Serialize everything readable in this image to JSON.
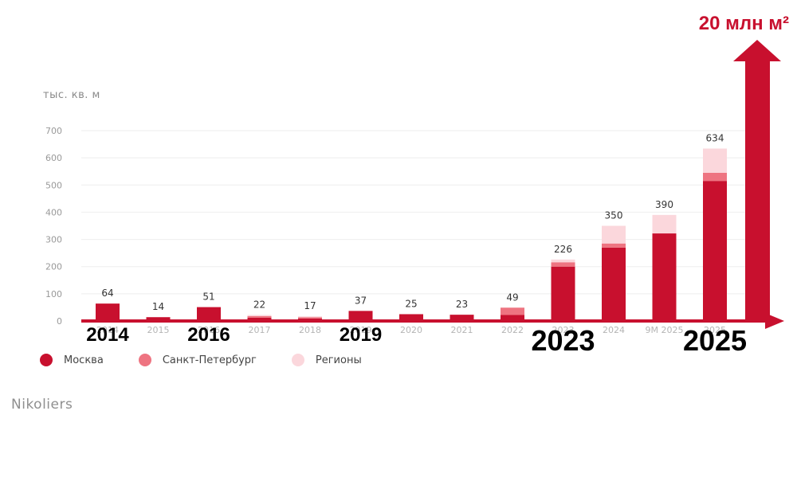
{
  "chart_data": {
    "type": "bar",
    "stacked": true,
    "unit_label": "тыс. кв. м",
    "target_label": "20 млн м²",
    "y_ticks": [
      0,
      100,
      200,
      300,
      400,
      500,
      600,
      700
    ],
    "ylim": [
      0,
      700
    ],
    "categories": [
      "2014",
      "2015",
      "2016",
      "2017",
      "2018",
      "2019",
      "2020",
      "2021",
      "2022",
      "2023",
      "2024",
      "9М 2025",
      "2025"
    ],
    "totals": [
      64,
      14,
      51,
      22,
      17,
      37,
      25,
      23,
      49,
      226,
      350,
      390,
      634
    ],
    "series": [
      {
        "name": "Москва",
        "color": "#c8102e",
        "values": [
          64,
          14,
          51,
          12,
          9,
          37,
          25,
          23,
          22,
          200,
          270,
          322,
          515
        ]
      },
      {
        "name": "Санкт-Петербург",
        "color": "#ee7481",
        "values": [
          0,
          0,
          0,
          6,
          5,
          0,
          0,
          0,
          27,
          16,
          15,
          0,
          30
        ]
      },
      {
        "name": "Регионы",
        "color": "#fbd7dc",
        "values": [
          0,
          0,
          0,
          4,
          3,
          0,
          0,
          0,
          0,
          10,
          65,
          68,
          89
        ]
      }
    ],
    "year_highlights": [
      {
        "label": "2014",
        "category": "2014",
        "size": "medium"
      },
      {
        "label": "2016",
        "category": "2016",
        "size": "medium"
      },
      {
        "label": "2019",
        "category": "2019",
        "size": "medium"
      },
      {
        "label": "2023",
        "category": "2023",
        "size": "large"
      },
      {
        "label": "2025",
        "category": "2025",
        "size": "large"
      }
    ],
    "accent_color": "#c8102e",
    "source": "Nikoliers"
  }
}
